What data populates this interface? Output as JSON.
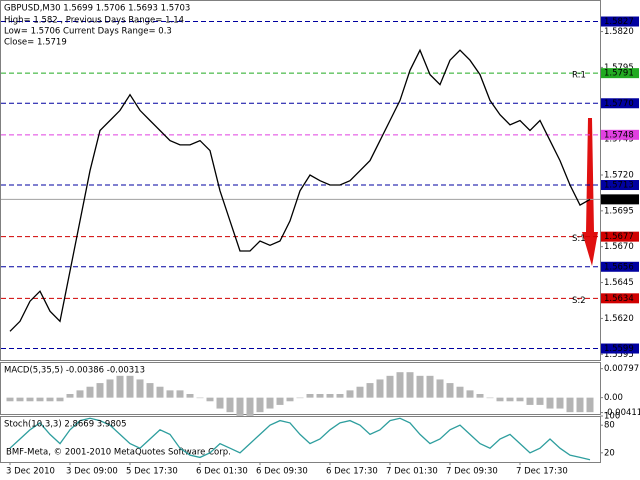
{
  "chart_data": [
    {
      "type": "line",
      "title": "GBPUSD,M30 1.5699 1.5706 1.5693 1.5703",
      "info": [
        "High= 1.582 , Previous Days Range= 1.14",
        "Low= 1.5706   Current Days Range= 0.3",
        "Close= 1.5719"
      ],
      "categories": [
        "3 Dec 2010",
        null,
        null,
        null,
        null,
        null,
        "3 Dec 09:00",
        null,
        null,
        null,
        null,
        null,
        "5 Dec 17:30",
        null,
        null,
        null,
        null,
        null,
        null,
        "6 Dec 01:30",
        null,
        null,
        null,
        null,
        null,
        "6 Dec 09:30",
        null,
        null,
        null,
        null,
        null,
        null,
        "6 Dec 17:30",
        null,
        null,
        null,
        null,
        null,
        "7 Dec 01:30",
        null,
        null,
        null,
        null,
        null,
        "7 Dec 09:30",
        null,
        null,
        null,
        null,
        null,
        null,
        "7 Dec 17:30",
        null,
        null,
        null,
        null,
        null,
        null,
        null
      ],
      "values": [
        1.5611,
        1.5618,
        1.5632,
        1.5639,
        1.5625,
        1.5618,
        1.5653,
        1.5688,
        1.5723,
        1.5751,
        1.5758,
        1.5765,
        1.5776,
        1.5765,
        1.5758,
        1.5751,
        1.5744,
        1.5741,
        1.5741,
        1.5744,
        1.5737,
        1.5709,
        1.5688,
        1.5667,
        1.5667,
        1.5674,
        1.5671,
        1.5674,
        1.5688,
        1.5709,
        1.572,
        1.5716,
        1.5713,
        1.5713,
        1.5716,
        1.5723,
        1.573,
        1.5744,
        1.5758,
        1.5772,
        1.5793,
        1.5807,
        1.579,
        1.5783,
        1.58,
        1.5807,
        1.58,
        1.579,
        1.5772,
        1.5762,
        1.5755,
        1.5758,
        1.5751,
        1.5758,
        1.5744,
        1.573,
        1.5713,
        1.5699,
        1.5703
      ],
      "color": "#000000",
      "ylim": [
        1.5591,
        1.5842
      ],
      "yticks": [
        {
          "value": 1.582,
          "label": "1.5820"
        },
        1.5795,
        1.5745,
        {
          "value": 1.572,
          "label": "1.5720"
        },
        1.5695,
        {
          "value": 1.567,
          "label": "1.5670"
        },
        1.5645,
        {
          "value": 1.562,
          "label": "1.5620"
        },
        1.5595
      ],
      "levels": [
        {
          "value": 1.5827,
          "color": "#0000a0"
        },
        {
          "value": 1.5791,
          "color": "#22aa22",
          "name": "R:1",
          "name_color": "#c8c800"
        },
        {
          "value": 1.577,
          "label": "1.5770",
          "color": "#0000a0"
        },
        {
          "value": 1.5748,
          "color": "#e040e0"
        },
        {
          "value": 1.5713,
          "color": "#0000a0"
        },
        {
          "value": 1.5703,
          "color": "#000000"
        },
        {
          "value": 1.5677,
          "color": "#d00000",
          "name": "S:1",
          "name_color": "#e0a000"
        },
        {
          "value": 1.5656,
          "color": "#0000a0"
        },
        {
          "value": 1.5634,
          "color": "#d00000",
          "name": "S:2",
          "name_color": "#e0a000"
        },
        {
          "value": 1.5599,
          "color": "#0000a0"
        }
      ]
    },
    {
      "type": "bar",
      "title": "MACD(5,35,5) -0.00386 -0.00313",
      "values": [
        -0.001,
        -0.001,
        -0.001,
        -0.001,
        -0.001,
        -0.001,
        0.001,
        0.002,
        0.003,
        0.004,
        0.005,
        0.006,
        0.006,
        0.005,
        0.004,
        0.003,
        0.002,
        0.002,
        0.001,
        0,
        -0.001,
        -0.003,
        -0.004,
        -0.005,
        -0.005,
        -0.004,
        -0.003,
        -0.002,
        -0.001,
        0,
        0.001,
        0.001,
        0.001,
        0.001,
        0.002,
        0.003,
        0.004,
        0.005,
        0.006,
        0.007,
        0.007,
        0.006,
        0.006,
        0.005,
        0.004,
        0.003,
        0.002,
        0.001,
        0,
        -0.001,
        -0.001,
        -0.001,
        -0.002,
        -0.002,
        -0.003,
        -0.003,
        -0.004,
        -0.004,
        -0.004
      ],
      "color": "#b4b4b4",
      "ylim": [
        -0.0045,
        0.0098
      ],
      "yticks": [
        0.00797,
        {
          "value": 0,
          "label": "0.00"
        },
        -0.00411
      ]
    },
    {
      "type": "line",
      "title": "Stoch(10,3,3) 2.8669 3.9805",
      "values": [
        30,
        50,
        70,
        85,
        60,
        40,
        70,
        90,
        95,
        90,
        80,
        60,
        40,
        30,
        50,
        70,
        60,
        30,
        15,
        10,
        20,
        40,
        30,
        20,
        40,
        60,
        80,
        90,
        85,
        60,
        40,
        50,
        70,
        85,
        90,
        80,
        60,
        70,
        90,
        95,
        85,
        60,
        40,
        50,
        70,
        80,
        60,
        40,
        30,
        50,
        60,
        40,
        20,
        30,
        50,
        30,
        15,
        10,
        5
      ],
      "color": "#2e9e9e",
      "ylim": [
        0,
        100
      ],
      "yticks": [
        100,
        80,
        20
      ]
    }
  ],
  "footer": "BMF-Meta, © 2001-2010 MetaQuotes Software Corp."
}
